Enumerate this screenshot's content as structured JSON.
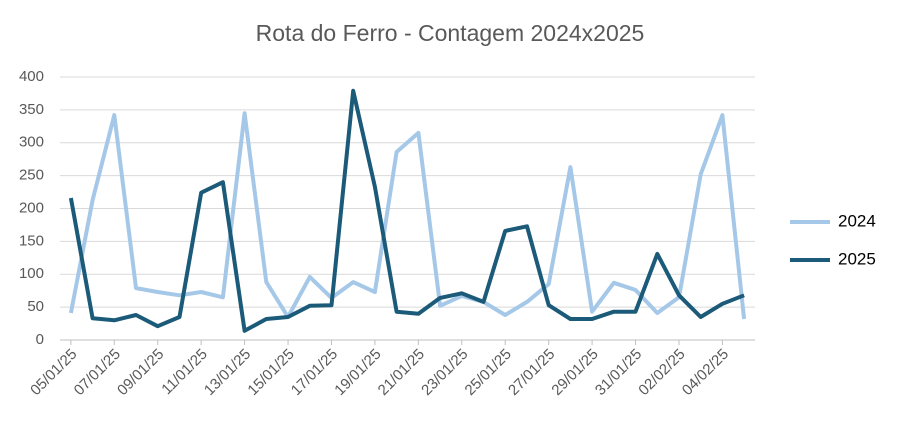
{
  "chart_data": {
    "type": "line",
    "title": "Rota do Ferro - Contagem 2024x2025",
    "categories": [
      "05/01/25",
      null,
      "07/01/25",
      null,
      "09/01/25",
      null,
      "11/01/25",
      null,
      "13/01/25",
      null,
      "15/01/25",
      null,
      "17/01/25",
      null,
      "19/01/25",
      null,
      "21/01/25",
      null,
      "23/01/25",
      null,
      "25/01/25",
      null,
      "27/01/25",
      null,
      "29/01/25",
      null,
      "31/01/25",
      null,
      "02/02/25",
      null,
      "04/02/25",
      null
    ],
    "series": [
      {
        "name": "2024",
        "color": "#a5c8e8",
        "values": [
          41,
          213,
          342,
          79,
          73,
          68,
          73,
          65,
          345,
          88,
          35,
          96,
          64,
          88,
          73,
          286,
          315,
          52,
          67,
          58,
          38,
          58,
          85,
          263,
          43,
          87,
          76,
          41,
          65,
          252,
          342,
          32
        ]
      },
      {
        "name": "2025",
        "color": "#1b5a78",
        "values": [
          216,
          33,
          30,
          38,
          21,
          35,
          224,
          240,
          14,
          32,
          35,
          52,
          53,
          379,
          233,
          43,
          40,
          64,
          71,
          58,
          166,
          173,
          53,
          32,
          32,
          43,
          43,
          131,
          68,
          35,
          55,
          68
        ]
      }
    ],
    "ylim": [
      0,
      400
    ],
    "yticks": [
      0,
      50,
      100,
      150,
      200,
      250,
      300,
      350,
      400
    ],
    "grid": true,
    "legend": "right"
  }
}
